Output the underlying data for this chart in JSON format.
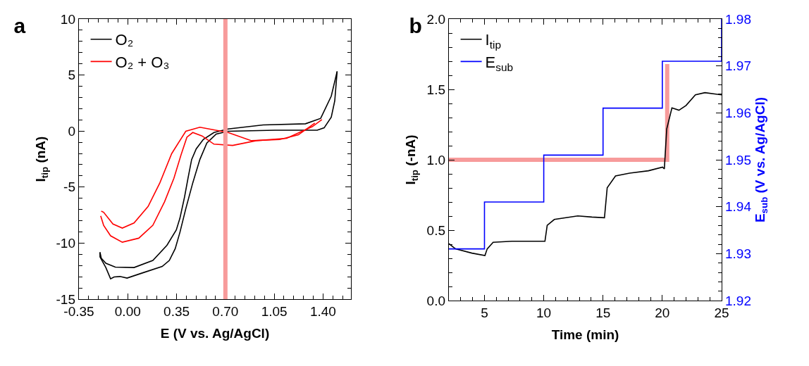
{
  "chart_data": [
    {
      "type": "line",
      "title": "a",
      "xlabel": "E (V vs. Ag/AgCl)",
      "ylabel": "I$_{tip}$ (nA)",
      "xlim": [
        -0.35,
        1.6
      ],
      "xticks": [
        {
          "value": -0.35,
          "label": "-0.35"
        },
        {
          "value": 0,
          "label": "0.00"
        },
        {
          "value": 0.35,
          "label": "0.35"
        },
        {
          "value": 0.7,
          "label": "0.70"
        },
        {
          "value": 1.05,
          "label": "1.05"
        },
        {
          "value": 1.4,
          "label": "1.40"
        }
      ],
      "ylim": [
        -15,
        10
      ],
      "yticks": [
        -15,
        -10,
        -5,
        0,
        5,
        10
      ],
      "grid": false,
      "legend": "top left",
      "marker": "none",
      "line_style": "solid",
      "ref_lines": [
        {
          "axis": "x",
          "value": 0.7,
          "color": "#f79b9b"
        }
      ],
      "series": [
        {
          "name": "O₂",
          "color": "#000000",
          "x": [
            1.501,
            1.459,
            1.383,
            1.274,
            0.971,
            0.719,
            0.618,
            0.542,
            0.491,
            0.458,
            0.432,
            0.407,
            0.374,
            0.348,
            0.281,
            0.18,
            0.045,
            -0.089,
            -0.157,
            -0.19,
            -0.199
          ],
          "values": [
            5.32,
            3.12,
            1.13,
            0.65,
            0.55,
            0.19,
            -0.13,
            -0.75,
            -1.59,
            -2.54,
            -4.21,
            -5.89,
            -7.78,
            -8.83,
            -10.19,
            -11.55,
            -12.18,
            -12.14,
            -11.8,
            -11.34,
            -10.82
          ]
        },
        {
          "color": "#000000",
          "x": [
            -0.199,
            -0.199,
            -0.157,
            -0.123,
            -0.098,
            -0.056,
            -0.005,
            0.096,
            0.247,
            0.298,
            0.34,
            0.374,
            0.416,
            0.466,
            0.517,
            0.567,
            0.634,
            0.719,
            1.055,
            1.358,
            1.408,
            1.459,
            1.484,
            1.501
          ],
          "values": [
            -10.82,
            -11.24,
            -12.18,
            -13.19,
            -13.02,
            -12.98,
            -13.12,
            -12.7,
            -12.08,
            -11.55,
            -10.5,
            -9.04,
            -6.94,
            -4.63,
            -2.54,
            -1.07,
            -0.27,
            -0.02,
            0.08,
            0.08,
            0.29,
            1.24,
            2.7,
            5.32
          ]
        },
        {
          "name": "O₂ + O₃",
          "color": "#ff0000",
          "x": [
            1.392,
            1.324,
            1.139,
            0.92,
            0.752,
            0.618,
            0.533,
            0.466,
            0.424,
            0.382,
            0.331,
            0.264,
            0.18,
            0.079,
            -0.039,
            -0.123,
            -0.173,
            -0.194
          ],
          "values": [
            1.03,
            0.4,
            -0.65,
            -0.86,
            -1.28,
            -1.17,
            -0.44,
            -0.13,
            -0.55,
            -2.12,
            -4.21,
            -6.31,
            -8.41,
            -9.56,
            -9.92,
            -9.35,
            -8.41,
            -7.57
          ]
        },
        {
          "color": "#ff0000",
          "x": [
            -0.19,
            -0.173,
            -0.106,
            -0.039,
            0.045,
            0.146,
            0.23,
            0.315,
            0.416,
            0.517,
            0.584,
            0.719,
            0.887,
            1.089,
            1.223,
            1.341
          ],
          "values": [
            -7.15,
            -7.25,
            -8.3,
            -8.66,
            -8.2,
            -6.73,
            -4.63,
            -2.01,
            -0.02,
            0.34,
            0.19,
            -0.13,
            -0.86,
            -0.76,
            -0.34,
            0.71
          ]
        }
      ]
    },
    {
      "type": "line",
      "title": "b",
      "xlabel": "Time (min)",
      "ylabel": "I$_{tip}$ (-nA)",
      "y2label": "E$_{sub}$ (V vs. Ag/AgCl)",
      "xlim": [
        2,
        25
      ],
      "xticks": [
        5,
        10,
        15,
        20,
        25
      ],
      "ylim": [
        0,
        2
      ],
      "yticks": [
        {
          "value": 0,
          "label": "0.0"
        },
        {
          "value": 0.5,
          "label": "0.5"
        },
        {
          "value": 1,
          "label": "1.0"
        },
        {
          "value": 1.5,
          "label": "1.5"
        },
        {
          "value": 2,
          "label": "2.0"
        }
      ],
      "y2lim": [
        1.92,
        1.98
      ],
      "y2ticks": [
        {
          "value": 1.92,
          "label": "1.92"
        },
        {
          "value": 1.93,
          "label": "1.93"
        },
        {
          "value": 1.94,
          "label": "1.94"
        },
        {
          "value": 1.95,
          "label": "1.95"
        },
        {
          "value": 1.96,
          "label": "1.96"
        },
        {
          "value": 1.97,
          "label": "1.97"
        },
        {
          "value": 1.98,
          "label": "1.98"
        }
      ],
      "grid": false,
      "legend": "top left",
      "marker": "none",
      "line_style": "solid",
      "series": [
        {
          "color": "#f79b9b",
          "x": [
            2,
            20.41,
            20.41
          ],
          "values": [
            1.0,
            1.0,
            1.68
          ]
        },
        {
          "name": "I$_{tip}$",
          "color": "#000000",
          "x": [
            2,
            2.56,
            3.94,
            5.04,
            5.23,
            5.73,
            7.32,
            10.1,
            10.29,
            10.89,
            12.87,
            14.06,
            15.12,
            15.35,
            16.05,
            17.24,
            18.83,
            20.02,
            20.17,
            20.37,
            20.81,
            21.4,
            22.0,
            22.79,
            23.59,
            25.0
          ],
          "values": [
            0.404,
            0.367,
            0.337,
            0.32,
            0.367,
            0.414,
            0.421,
            0.421,
            0.534,
            0.576,
            0.601,
            0.593,
            0.588,
            0.801,
            0.885,
            0.905,
            0.922,
            0.948,
            0.935,
            1.219,
            1.369,
            1.352,
            1.386,
            1.461,
            1.477,
            1.461
          ]
        },
        {
          "name": "E$_{sub}$",
          "color": "#0000ff",
          "axis": "y2",
          "x": [
            2,
            5,
            5,
            10,
            10,
            15,
            15,
            20,
            20,
            25,
            25
          ],
          "values": [
            1.931,
            1.931,
            1.941,
            1.941,
            1.951,
            1.951,
            1.961,
            1.961,
            1.971,
            1.971,
            1.98
          ]
        }
      ]
    }
  ]
}
